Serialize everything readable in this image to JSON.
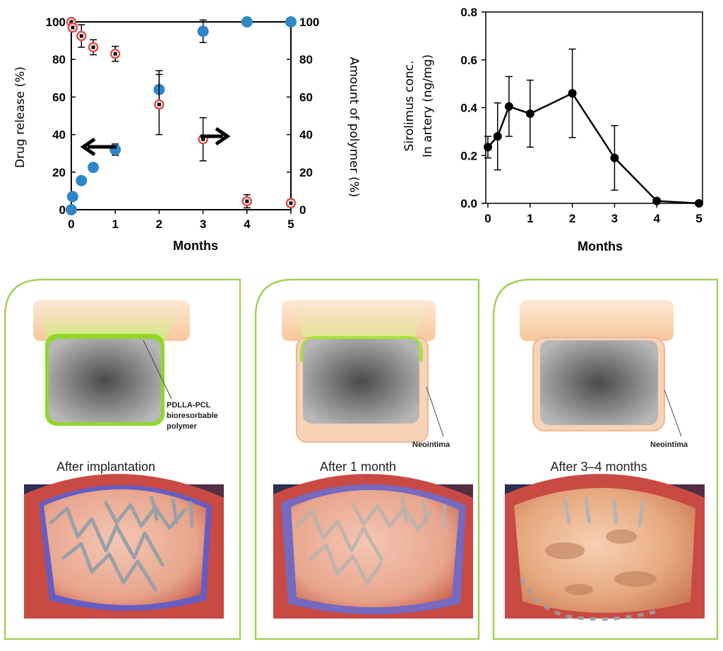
{
  "chart_data": [
    {
      "type": "scatter",
      "xlabel": "Months",
      "ylabel_left": "Drug release (%)",
      "ylabel_right": "Amount of polymer (%)",
      "xlim": [
        0,
        5
      ],
      "ylim_left": [
        0,
        100
      ],
      "ylim_right": [
        0,
        100
      ],
      "x_ticks": [
        "0",
        "1",
        "2",
        "3",
        "4",
        "5"
      ],
      "y_ticks_left": [
        "0",
        "20",
        "40",
        "60",
        "80",
        "100"
      ],
      "y_ticks_right": [
        "0",
        "20",
        "40",
        "60",
        "80",
        "100"
      ],
      "series": [
        {
          "name": "Drug release",
          "axis": "left",
          "color": "#2f86c8",
          "marker": "filled-circle",
          "points": [
            {
              "x": 0,
              "y": 0
            },
            {
              "x": 0.03,
              "y": 7
            },
            {
              "x": 0.23,
              "y": 15.5
            },
            {
              "x": 0.5,
              "y": 22.5,
              "err": 1.5
            },
            {
              "x": 1,
              "y": 32,
              "err": 3
            },
            {
              "x": 2,
              "y": 64,
              "err": 10
            },
            {
              "x": 3,
              "y": 95,
              "err": 6
            },
            {
              "x": 4,
              "y": 100
            },
            {
              "x": 5,
              "y": 100
            }
          ]
        },
        {
          "name": "Amount of polymer",
          "axis": "right",
          "color": "#d9534f",
          "marker": "open-circle",
          "points": [
            {
              "x": 0,
              "y": 100,
              "err": 1
            },
            {
              "x": 0.03,
              "y": 97,
              "err": 2
            },
            {
              "x": 0.23,
              "y": 92.5,
              "err": 6
            },
            {
              "x": 0.5,
              "y": 86.5,
              "err": 4
            },
            {
              "x": 1,
              "y": 83,
              "err": 4
            },
            {
              "x": 2,
              "y": 56,
              "err": 16
            },
            {
              "x": 3,
              "y": 37.5,
              "err": 11.5
            },
            {
              "x": 4,
              "y": 4.5,
              "err": 3.5
            },
            {
              "x": 5,
              "y": 3.5,
              "err": 2
            }
          ]
        }
      ],
      "annotations": [
        {
          "text": "left arrow",
          "points_to": "Drug release (left axis)"
        },
        {
          "text": "right arrow",
          "points_to": "Amount of polymer (right axis)"
        }
      ]
    },
    {
      "type": "line",
      "xlabel": "Months",
      "ylabel_line1": "Sirolimus conc.",
      "ylabel_line2": "In artery (ng/mg)",
      "xlim": [
        0,
        5
      ],
      "ylim": [
        0,
        0.8
      ],
      "x_ticks": [
        "0",
        "1",
        "2",
        "3",
        "4",
        "5"
      ],
      "y_ticks": [
        "0.0",
        "0.2",
        "0.4",
        "0.6",
        "0.8"
      ],
      "series": [
        {
          "name": "Sirolimus concentration",
          "color": "#000000",
          "points": [
            {
              "x": 0,
              "y": 0.235,
              "err": 0.045
            },
            {
              "x": 0.23,
              "y": 0.28,
              "err": 0.14
            },
            {
              "x": 0.5,
              "y": 0.405,
              "err": 0.125
            },
            {
              "x": 1,
              "y": 0.375,
              "err": 0.14
            },
            {
              "x": 2,
              "y": 0.46,
              "err": 0.185
            },
            {
              "x": 3,
              "y": 0.19,
              "err": 0.135
            },
            {
              "x": 4,
              "y": 0.01,
              "err": 0.005
            },
            {
              "x": 5,
              "y": 0.0,
              "err": 0
            }
          ]
        }
      ]
    }
  ],
  "panels": [
    {
      "caption": "After implantation",
      "label_lines": [
        "PDLLA-PCL",
        "bioresorbable",
        "polymer"
      ],
      "coating_visible": true,
      "coating_fraction": 1.0
    },
    {
      "caption": "After 1 month",
      "label_lines": [
        "Neointima"
      ],
      "coating_visible": true,
      "coating_fraction": 0.6
    },
    {
      "caption": "After 3–4 months",
      "label_lines": [
        "Neointima"
      ],
      "coating_visible": false,
      "coating_fraction": 0.0
    }
  ],
  "colors": {
    "drug": "#2f86c8",
    "polymer": "#d9534f",
    "panel_border": "#a6cf5a",
    "coating": "#8fd82a",
    "tissue": "#f6c08f"
  }
}
